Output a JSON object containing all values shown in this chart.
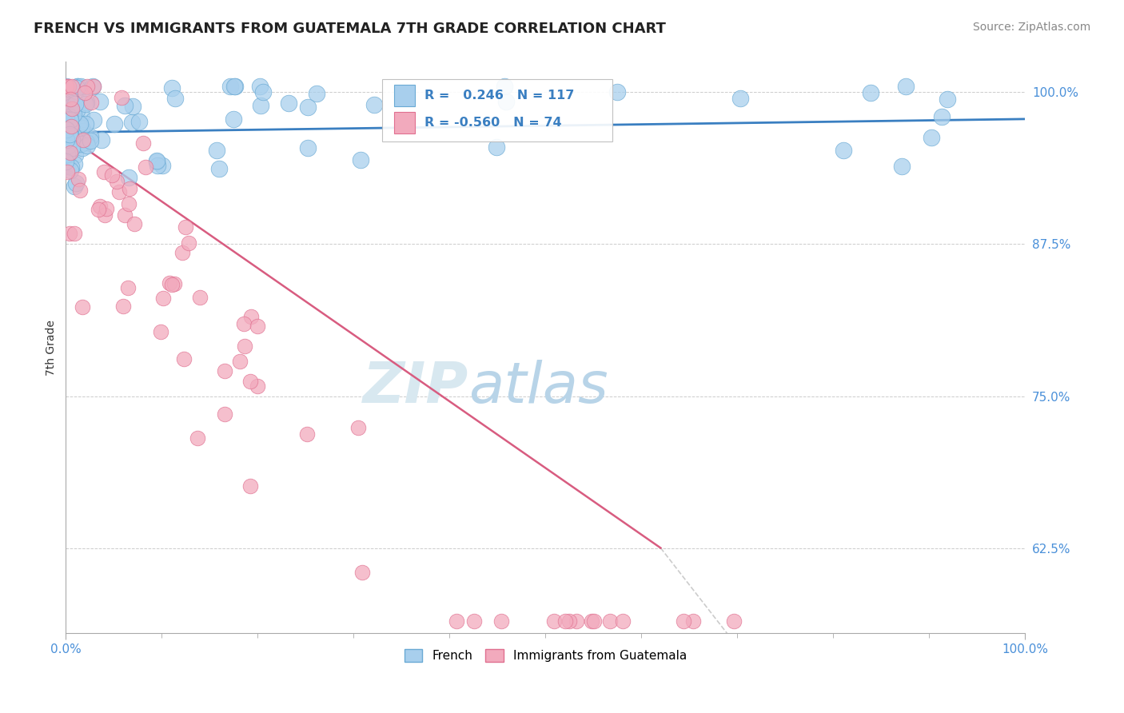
{
  "title": "FRENCH VS IMMIGRANTS FROM GUATEMALA 7TH GRADE CORRELATION CHART",
  "source_text": "Source: ZipAtlas.com",
  "ylabel": "7th Grade",
  "watermark_zip": "ZIP",
  "watermark_atlas": "atlas",
  "x_min": 0.0,
  "x_max": 1.0,
  "y_min": 0.555,
  "y_max": 1.025,
  "y_ticks": [
    0.625,
    0.75,
    0.875,
    1.0
  ],
  "y_tick_labels": [
    "62.5%",
    "75.0%",
    "87.5%",
    "100.0%"
  ],
  "x_tick_labels": [
    "0.0%",
    "100.0%"
  ],
  "blue_R": 0.246,
  "blue_N": 117,
  "pink_R": -0.56,
  "pink_N": 74,
  "blue_color": "#A8CFED",
  "pink_color": "#F2AABD",
  "blue_edge_color": "#6AAAD4",
  "pink_edge_color": "#E07090",
  "blue_line_color": "#3A7FC1",
  "pink_line_color": "#D85C80",
  "legend_blue_label": "French",
  "legend_pink_label": "Immigrants from Guatemala",
  "title_fontsize": 13,
  "label_fontsize": 10,
  "tick_fontsize": 11,
  "source_fontsize": 10,
  "watermark_fontsize_zip": 52,
  "watermark_fontsize_atlas": 52,
  "watermark_color_zip": "#D8E8F0",
  "watermark_color_atlas": "#B8D4E8",
  "background_color": "#FFFFFF",
  "grid_color": "#CCCCCC"
}
